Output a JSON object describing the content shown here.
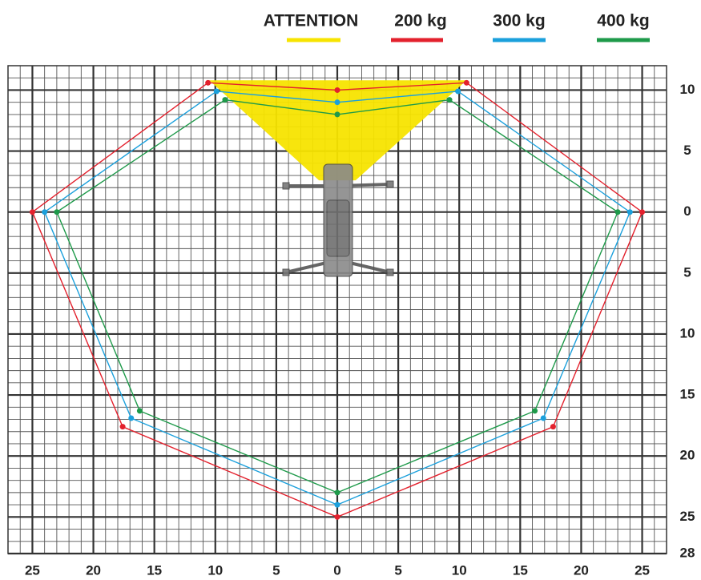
{
  "chart_data": {
    "type": "line",
    "xlim": [
      -27,
      27
    ],
    "ylim": [
      -28,
      12
    ],
    "xticks": [
      {
        "value": -25,
        "label": "25"
      },
      {
        "value": -20,
        "label": "20"
      },
      {
        "value": -15,
        "label": "15"
      },
      {
        "value": -10,
        "label": "10"
      },
      {
        "value": -5,
        "label": "5"
      },
      0,
      5,
      10,
      15,
      20,
      25
    ],
    "yticks": [
      10,
      5,
      0,
      {
        "value": -5,
        "label": "5"
      },
      {
        "value": -10,
        "label": "10"
      },
      {
        "value": -15,
        "label": "15"
      },
      {
        "value": -20,
        "label": "20"
      },
      {
        "value": -25,
        "label": "25"
      },
      {
        "value": -28,
        "label": "28"
      }
    ],
    "grid": true,
    "minor_grid": 1,
    "series": [
      {
        "name": "ATTENTION",
        "color": "#f7e400",
        "fill": true,
        "x": [
          -10.5,
          10.6,
          1.5,
          -1.5
        ],
        "values": [
          10.8,
          10.8,
          2.6,
          2.6
        ]
      },
      {
        "name": "200 kg",
        "color": "#e3212d",
        "x": [
          -10.6,
          0,
          10.6,
          25,
          17.7,
          0,
          -17.6,
          -25
        ],
        "values": [
          10.6,
          10,
          10.6,
          0,
          -17.6,
          -25,
          -17.6,
          0
        ]
      },
      {
        "name": "300 kg",
        "color": "#1ba0dc",
        "x": [
          -9.9,
          0,
          9.9,
          24,
          16.9,
          0,
          -16.9,
          -24
        ],
        "values": [
          9.9,
          9,
          9.9,
          0,
          -16.9,
          -24,
          -16.9,
          0
        ]
      },
      {
        "name": "400 kg",
        "color": "#1e9a4a",
        "x": [
          -9.2,
          0,
          9.2,
          23,
          16.2,
          0,
          -16.2,
          -23
        ],
        "values": [
          9.2,
          8,
          9.2,
          0,
          -16.3,
          -23,
          -16.3,
          0
        ]
      }
    ]
  }
}
